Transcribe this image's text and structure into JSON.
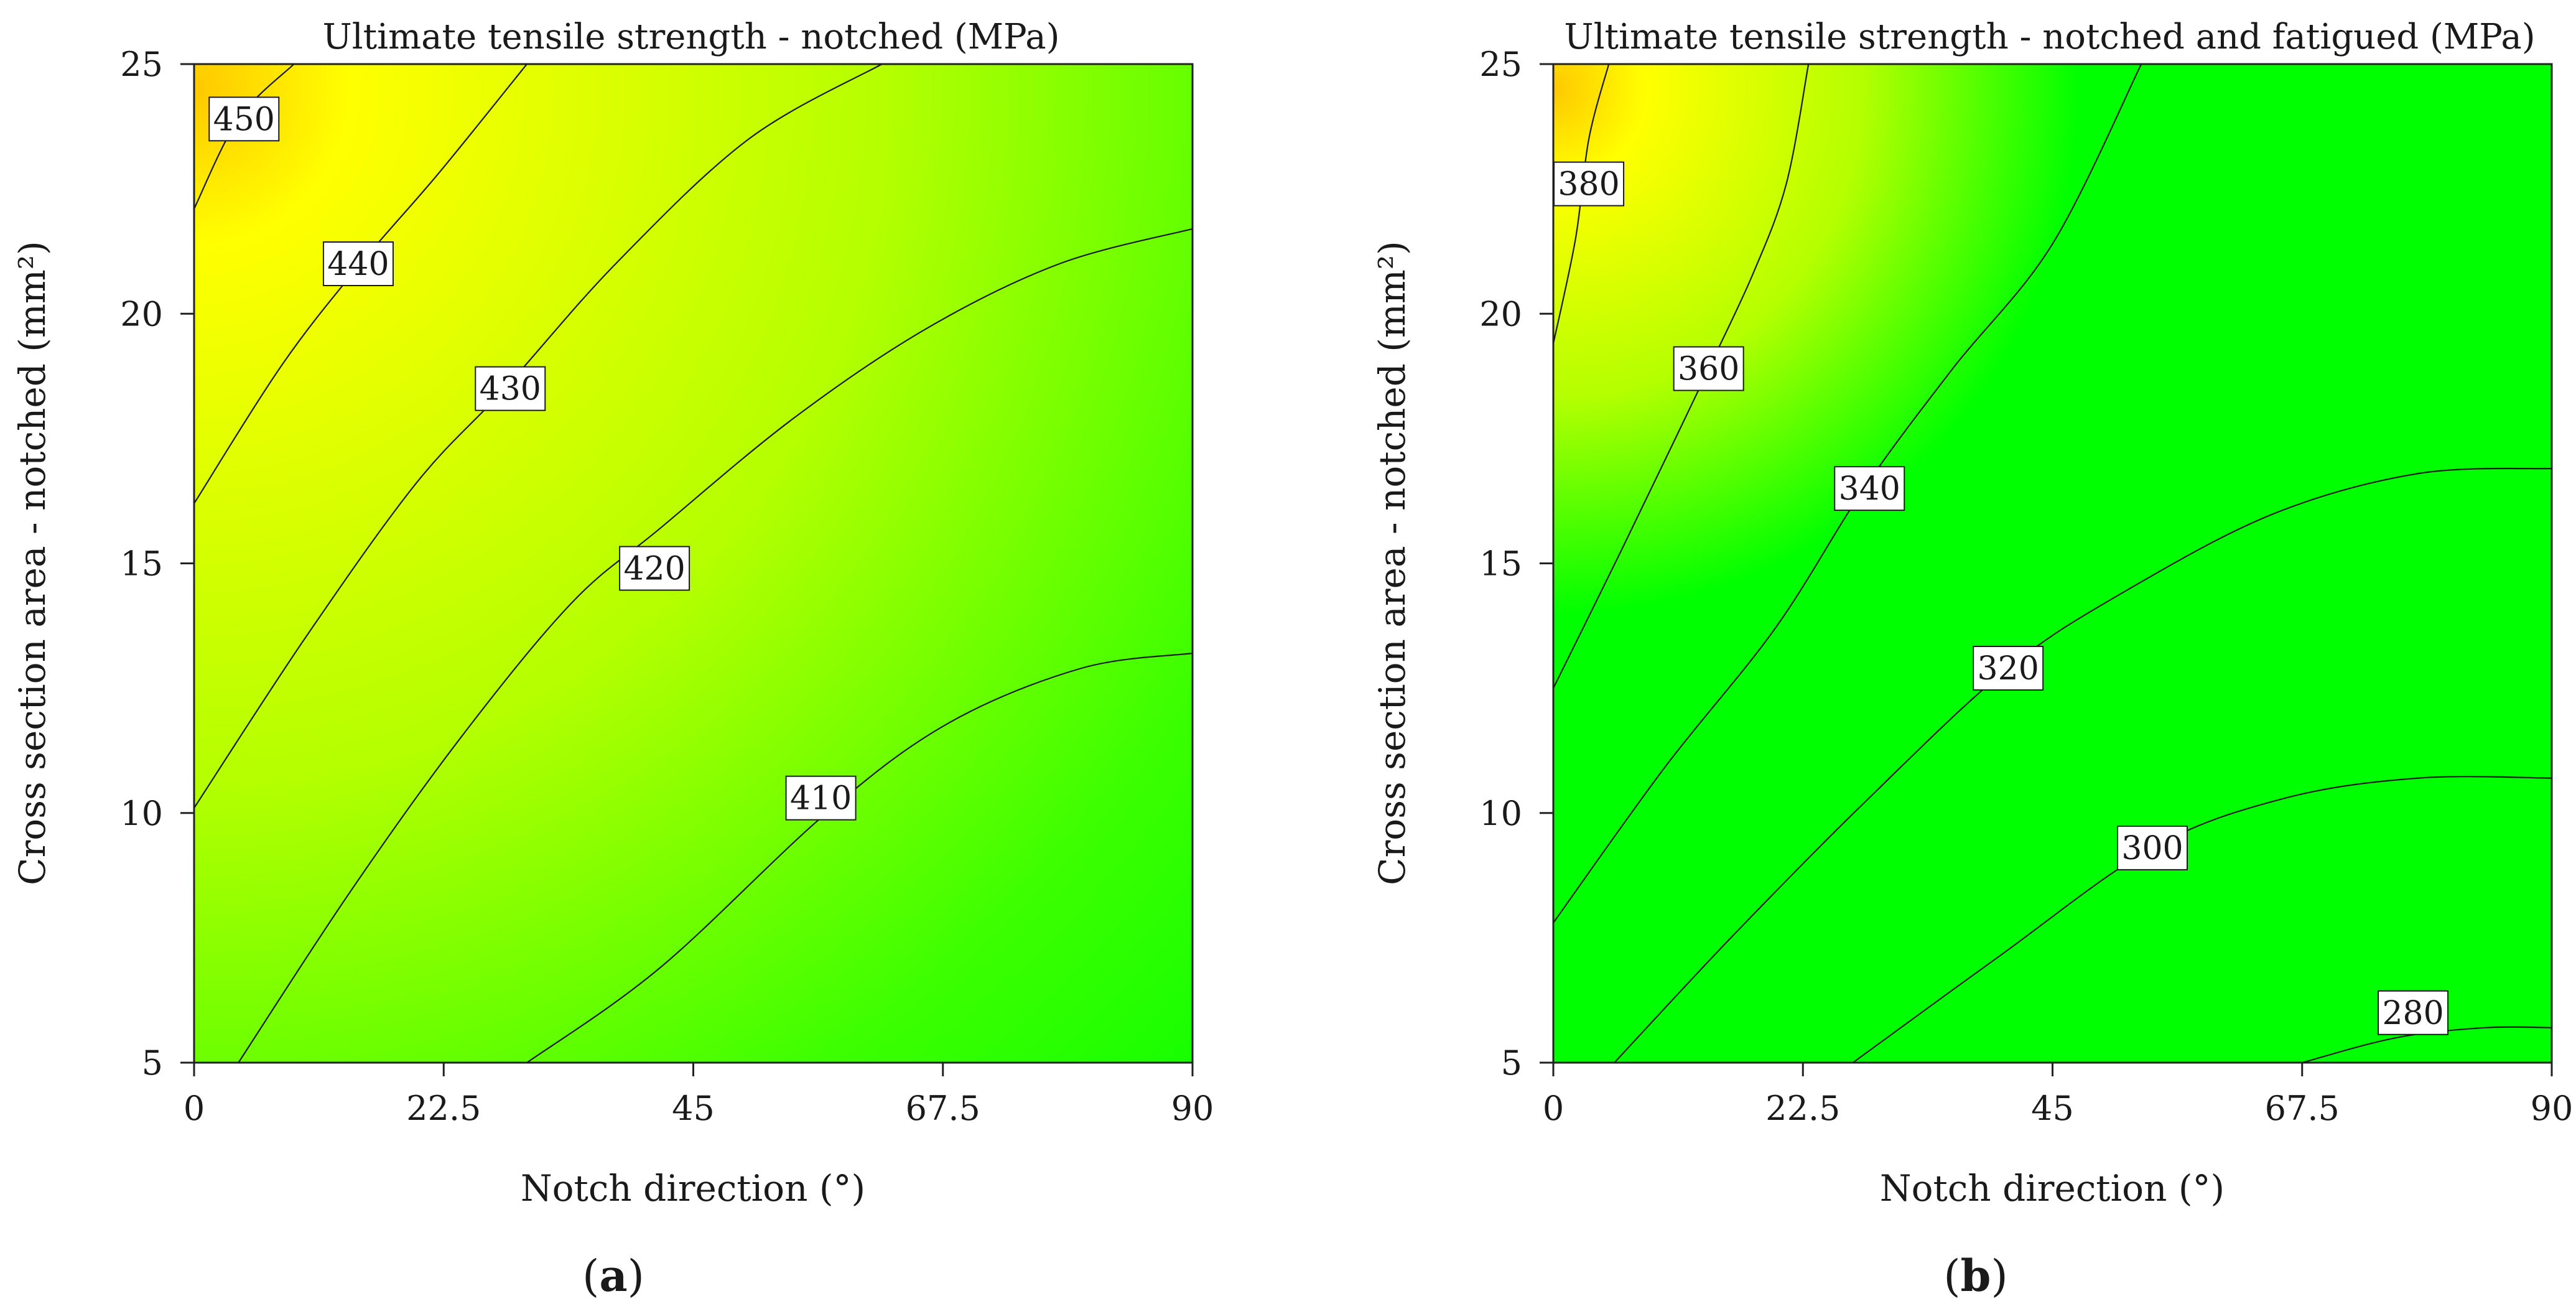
{
  "chart_data": [
    {
      "type": "contour",
      "panel": "(a)",
      "panel_letter": "a",
      "title": "Ultimate tensile strength -  notched (MPa)",
      "xlabel": "Notch direction (°)",
      "ylabel": "Cross section area -  notched (mm²)",
      "xlim": [
        0,
        90
      ],
      "ylim": [
        5,
        25
      ],
      "x_ticks": [
        "0",
        "22.5",
        "45",
        "67.5",
        "90"
      ],
      "y_ticks": [
        "5",
        "10",
        "15",
        "20",
        "25"
      ],
      "colors": {
        "high": "#ffc800",
        "mid": "#ffff00",
        "low": "#00ff00"
      },
      "value_range": [
        402,
        452
      ],
      "peak": {
        "x": 0,
        "y": 24.5
      },
      "contours": [
        {
          "level": 450,
          "label": "450",
          "points": [
            [
              0,
              22.1
            ],
            [
              4,
              23.9
            ],
            [
              9,
              25
            ]
          ],
          "label_at": [
            4.5,
            23.9
          ]
        },
        {
          "level": 440,
          "label": "440",
          "points": [
            [
              0,
              16.2
            ],
            [
              8,
              19.0
            ],
            [
              15,
              21.0
            ],
            [
              22,
              22.8
            ],
            [
              30,
              25
            ]
          ],
          "label_at": [
            14.8,
            21.0
          ]
        },
        {
          "level": 430,
          "label": "430",
          "points": [
            [
              0,
              10.1
            ],
            [
              10,
              13.5
            ],
            [
              20,
              16.6
            ],
            [
              28,
              18.5
            ],
            [
              38,
              21.0
            ],
            [
              50,
              23.5
            ],
            [
              62,
              25
            ]
          ],
          "label_at": [
            28.5,
            18.5
          ]
        },
        {
          "level": 420,
          "label": "420",
          "points": [
            [
              4,
              5
            ],
            [
              14,
              8.4
            ],
            [
              24,
              11.5
            ],
            [
              34,
              14.2
            ],
            [
              42,
              15.7
            ],
            [
              54,
              17.9
            ],
            [
              66,
              19.7
            ],
            [
              78,
              21.0
            ],
            [
              90,
              21.7
            ]
          ],
          "label_at": [
            41.5,
            14.9
          ]
        },
        {
          "level": 410,
          "label": "410",
          "points": [
            [
              30,
              5
            ],
            [
              42,
              6.9
            ],
            [
              57,
              10.0
            ],
            [
              68,
              11.8
            ],
            [
              80,
              12.9
            ],
            [
              90,
              13.2
            ]
          ],
          "label_at": [
            56.5,
            10.3
          ]
        }
      ]
    },
    {
      "type": "contour",
      "panel": "(b)",
      "panel_letter": "b",
      "title": "Ultimate tensile strength  -  notched and fatigued (MPa)",
      "xlabel": "Notch direction (°)",
      "ylabel": "Cross section area  -  notched (mm²)",
      "xlim": [
        0,
        90
      ],
      "ylim": [
        5,
        25
      ],
      "x_ticks": [
        "0",
        "22.5",
        "45",
        "67.5",
        "90"
      ],
      "y_ticks": [
        "5",
        "10",
        "15",
        "20",
        "25"
      ],
      "colors": {
        "high": "#ffc800",
        "mid": "#ffff00",
        "low": "#00ff00"
      },
      "value_range": [
        270,
        395
      ],
      "peak": {
        "x": 0,
        "y": 24.5
      },
      "contours": [
        {
          "level": 380,
          "label": "380",
          "points": [
            [
              0,
              19.4
            ],
            [
              2,
              21.5
            ],
            [
              3.2,
              23.5
            ],
            [
              5,
              25
            ]
          ],
          "label_at": [
            3.2,
            22.6
          ]
        },
        {
          "level": 360,
          "label": "360",
          "points": [
            [
              0,
              12.5
            ],
            [
              6,
              15.2
            ],
            [
              11,
              17.5
            ],
            [
              14,
              18.9
            ],
            [
              18,
              20.8
            ],
            [
              21,
              22.6
            ],
            [
              23,
              25
            ]
          ],
          "label_at": [
            14.0,
            18.9
          ]
        },
        {
          "level": 340,
          "label": "340",
          "points": [
            [
              0,
              7.8
            ],
            [
              10,
              10.9
            ],
            [
              20,
              13.7
            ],
            [
              28,
              16.5
            ],
            [
              36,
              18.9
            ],
            [
              45,
              21.4
            ],
            [
              53,
              25
            ]
          ],
          "label_at": [
            28.5,
            16.5
          ]
        },
        {
          "level": 320,
          "label": "320",
          "points": [
            [
              5.5,
              5
            ],
            [
              16,
              7.5
            ],
            [
              28,
              10.2
            ],
            [
              41,
              12.9
            ],
            [
              52,
              14.5
            ],
            [
              65,
              16.0
            ],
            [
              78,
              16.8
            ],
            [
              90,
              16.9
            ]
          ],
          "label_at": [
            41.0,
            12.9
          ]
        },
        {
          "level": 300,
          "label": "300",
          "points": [
            [
              27,
              5
            ],
            [
              40,
              7.1
            ],
            [
              54,
              9.3
            ],
            [
              66,
              10.3
            ],
            [
              78,
              10.7
            ],
            [
              90,
              10.7
            ]
          ],
          "label_at": [
            54.0,
            9.3
          ]
        },
        {
          "level": 280,
          "label": "280",
          "points": [
            [
              67.5,
              5
            ],
            [
              76,
              5.5
            ],
            [
              84,
              5.7
            ],
            [
              90,
              5.7
            ]
          ],
          "label_at": [
            77.5,
            6.0
          ]
        }
      ]
    }
  ]
}
